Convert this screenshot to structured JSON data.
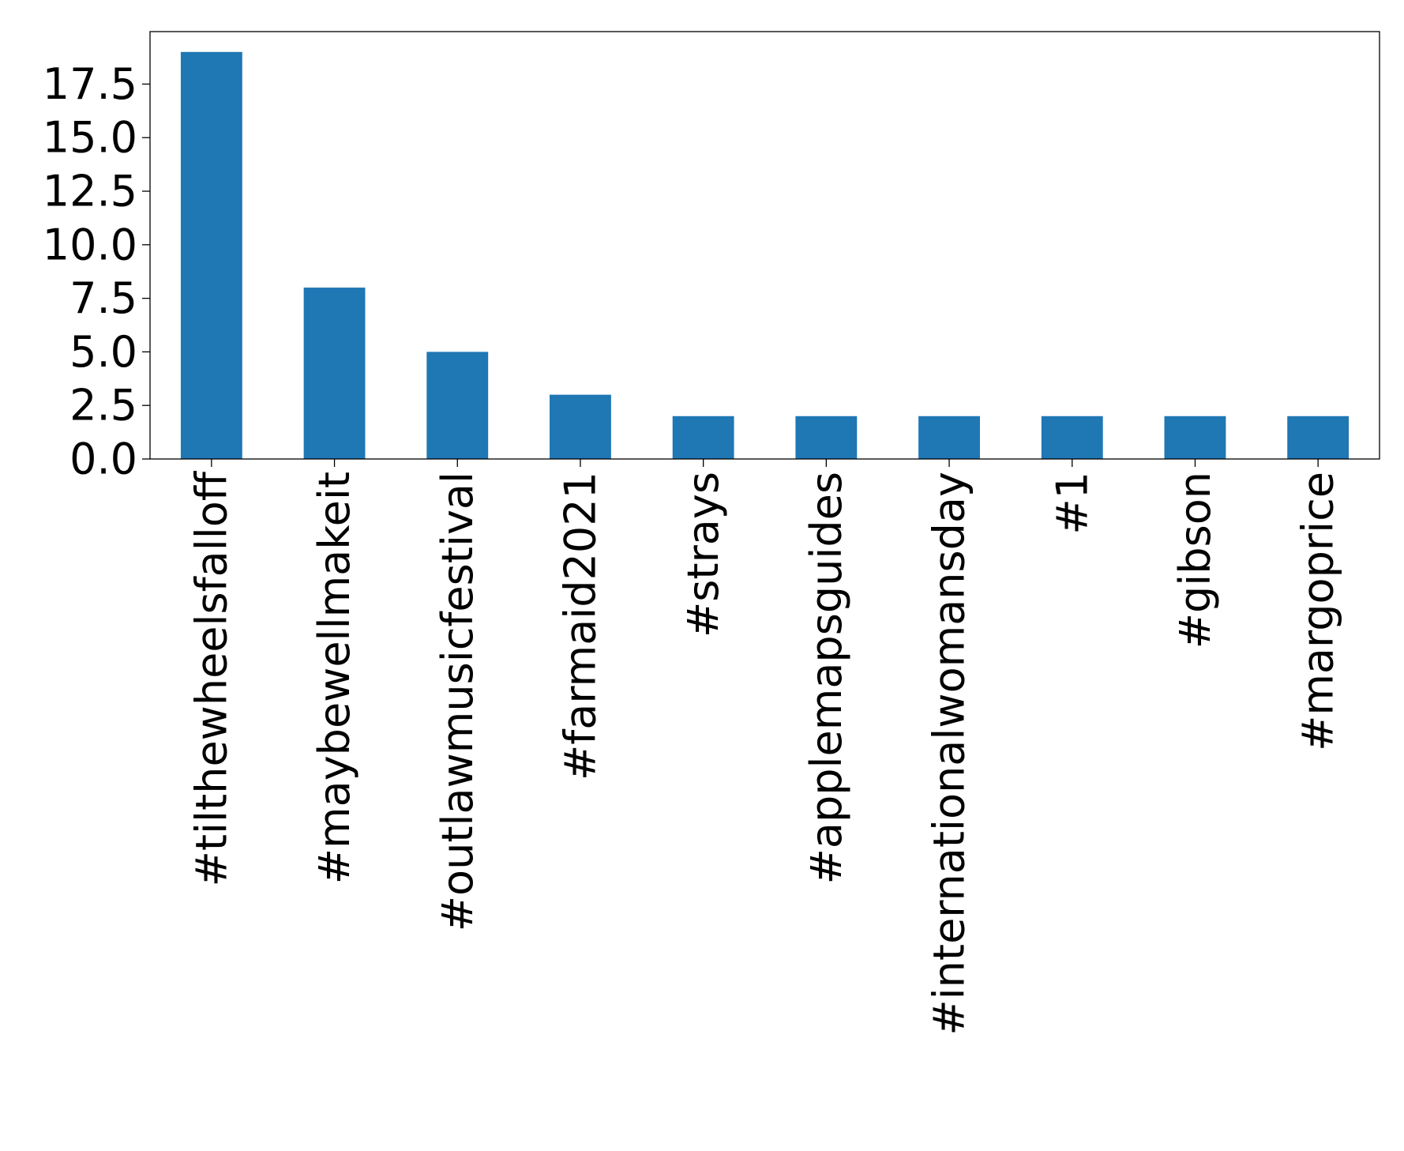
{
  "chart_data": {
    "type": "bar",
    "title": "",
    "xlabel": "",
    "ylabel": "",
    "categories": [
      "#tilthewheelsfalloff",
      "#maybewellmakeit",
      "#outlawmusicfestival",
      "#farmaid2021",
      "#strays",
      "#applemapsguides",
      "#internationalwomansday",
      "#1",
      "#gibson",
      "#margoprice"
    ],
    "values": [
      19,
      8,
      5,
      3,
      2,
      2,
      2,
      2,
      2,
      2
    ],
    "ylim": [
      0,
      19.95
    ],
    "yticks": [
      0.0,
      2.5,
      5.0,
      7.5,
      10.0,
      12.5,
      15.0,
      17.5
    ],
    "ytick_labels": [
      "0.0",
      "2.5",
      "5.0",
      "7.5",
      "10.0",
      "12.5",
      "15.0",
      "17.5"
    ],
    "bar_color": "#1f77b4",
    "grid": false,
    "legend": "none",
    "x_tick_rotation": "vertical"
  }
}
